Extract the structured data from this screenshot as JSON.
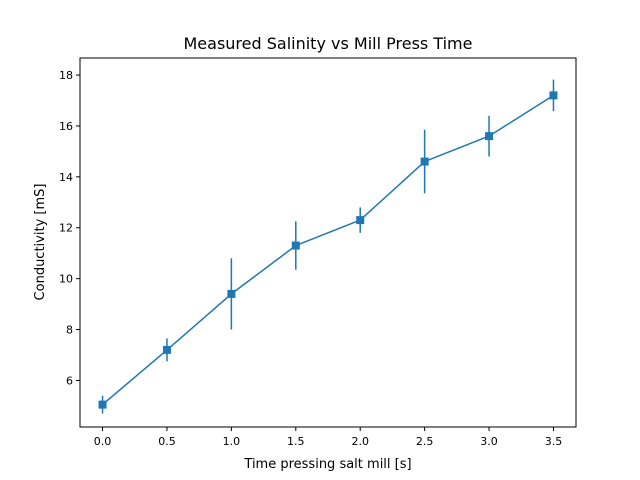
{
  "chart_data": {
    "type": "line",
    "title": "Measured Salinity vs Mill Press Time",
    "xlabel": "Time pressing salt mill [s]",
    "ylabel": "Conductivity [mS]",
    "x": [
      0.0,
      0.5,
      1.0,
      1.5,
      2.0,
      2.5,
      3.0,
      3.5
    ],
    "series": [
      {
        "values": [
          5.05,
          7.2,
          9.4,
          11.3,
          12.3,
          14.6,
          15.6,
          17.2
        ],
        "errors": [
          0.35,
          0.45,
          1.4,
          0.95,
          0.5,
          1.25,
          0.8,
          0.62
        ],
        "marker": "square",
        "color": "#1f77b4"
      }
    ],
    "xlim": [
      -0.175,
      3.675
    ],
    "ylim": [
      4.17,
      18.67
    ],
    "xticks": [
      "0.0",
      "0.5",
      "1.0",
      "1.5",
      "2.0",
      "2.5",
      "3.0",
      "3.5"
    ],
    "yticks": [
      "6",
      "8",
      "10",
      "12",
      "14",
      "16",
      "18"
    ],
    "grid": false,
    "legend": "none"
  }
}
